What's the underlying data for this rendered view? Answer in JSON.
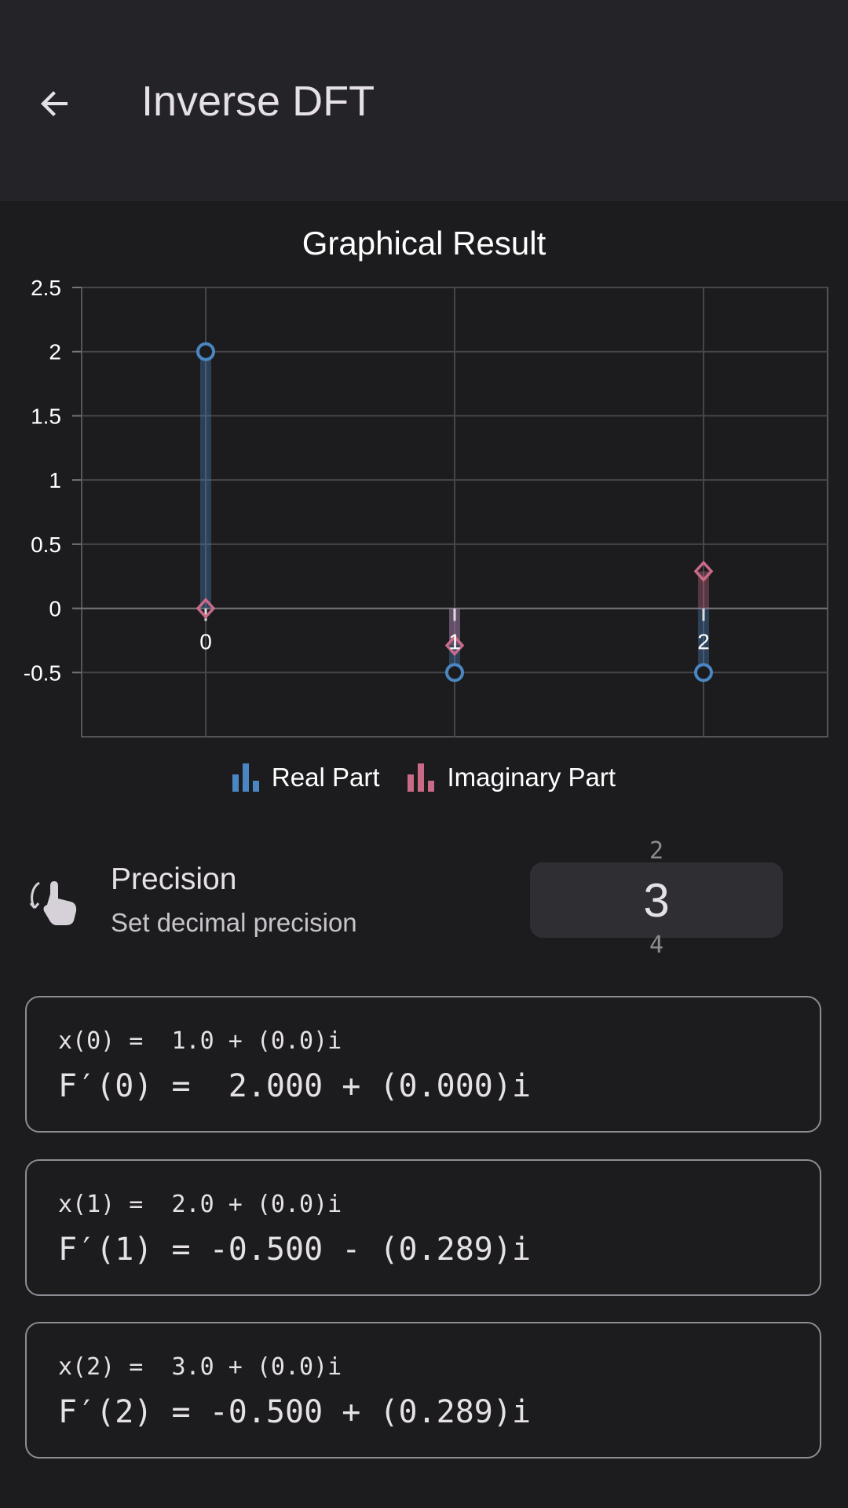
{
  "app_bar": {
    "title": "Inverse DFT",
    "back_icon": "arrow-back-icon"
  },
  "chart_title": "Graphical Result",
  "chart_data": {
    "type": "scatter",
    "title": "Graphical Result",
    "x": [
      0,
      1,
      2
    ],
    "x_tick_labels": [
      "0",
      "1",
      "2"
    ],
    "y_tick_labels": [
      "2.5",
      "2",
      "1.5",
      "1",
      "0.5",
      "0",
      "-0.5"
    ],
    "ylim": [
      -1,
      2.5
    ],
    "grid": true,
    "legend_position": "bottom",
    "series": [
      {
        "name": "Real Part",
        "values": [
          2.0,
          -0.5,
          -0.5
        ],
        "color": "#4a86c2",
        "marker": "circle"
      },
      {
        "name": "Imaginary Part",
        "values": [
          0.0,
          -0.289,
          0.289
        ],
        "color": "#c96a87",
        "marker": "diamond"
      }
    ]
  },
  "legend": [
    {
      "label": "Real Part",
      "color": "#4a86c2"
    },
    {
      "label": "Imaginary Part",
      "color": "#c96a87"
    }
  ],
  "precision": {
    "icon": "gesture-swipe-icon",
    "title": "Precision",
    "subtitle": "Set decimal precision",
    "prev_value": "2",
    "value": "3",
    "next_value": "4"
  },
  "results": [
    {
      "input": "x(0) =  1.0 + (0.0)i",
      "output": "F′(0) =  2.000 + (0.000)i"
    },
    {
      "input": "x(1) =  2.0 + (0.0)i",
      "output": "F′(1) = -0.500 - (0.289)i"
    },
    {
      "input": "x(2) =  3.0 + (0.0)i",
      "output": "F′(2) = -0.500 + (0.289)i"
    }
  ]
}
